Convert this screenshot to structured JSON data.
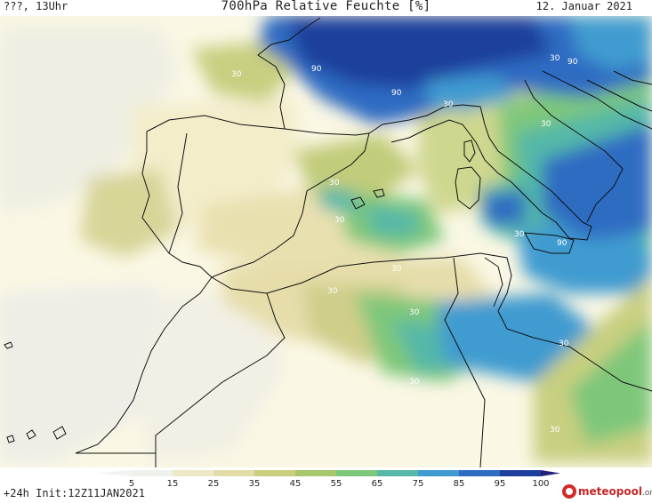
{
  "header": {
    "left": "???, 13Uhr",
    "title": "700hPa Relative Feuchte [%]",
    "date": "12. Januar 2021"
  },
  "footer": {
    "run_info": "+24h Init:12Z11JAN2021",
    "logo_name": "meteopool",
    "logo_tld": ".org"
  },
  "legend": {
    "ticks": [
      "5",
      "15",
      "25",
      "35",
      "45",
      "55",
      "65",
      "75",
      "85",
      "95",
      "100"
    ],
    "colors": [
      "#f0f0ec",
      "#efe8c6",
      "#e3dca8",
      "#c9cf7f",
      "#a8c66a",
      "#7ec77a",
      "#55b8a8",
      "#3f9bd0",
      "#2d6cc2",
      "#1f3f9c",
      "#24207a"
    ]
  },
  "map": {
    "isoline_labels": [
      {
        "text": "30"
      },
      {
        "text": "90"
      },
      {
        "text": "90"
      },
      {
        "text": "30"
      },
      {
        "text": "90"
      },
      {
        "text": "30"
      },
      {
        "text": "30"
      },
      {
        "text": "30"
      },
      {
        "text": "30"
      },
      {
        "text": "90"
      },
      {
        "text": "30"
      },
      {
        "text": "30"
      },
      {
        "text": "30"
      },
      {
        "text": "30"
      },
      {
        "text": "30"
      },
      {
        "text": "30"
      },
      {
        "text": "30"
      }
    ]
  }
}
